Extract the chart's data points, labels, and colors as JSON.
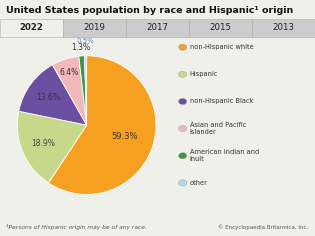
{
  "title": "United States population by race and Hispanic¹ origin",
  "footnote": "¹Persons of Hispanic origin may be of any race.",
  "copyright": "© Encyclopaedia Britannica, Inc.",
  "years": [
    "2022",
    "2019",
    "2017",
    "2015",
    "2013"
  ],
  "slices": [
    {
      "label": "non-Hispanic white",
      "value": 59.3,
      "color": "#f5a020"
    },
    {
      "label": "Hispanic",
      "value": 18.9,
      "color": "#c8d88a"
    },
    {
      "label": "non-Hispanic Black",
      "value": 13.6,
      "color": "#6b4fa0"
    },
    {
      "label": "Asian and Pacific\nIslander",
      "value": 6.4,
      "color": "#f0b8b8"
    },
    {
      "label": "American Indian and\nInuit",
      "value": 1.3,
      "color": "#3a9a44"
    },
    {
      "label": "other",
      "value": 0.5,
      "color": "#b0d8f0"
    }
  ],
  "bg_color": "#f0f0eb",
  "header_bg": "#cccccc",
  "header_selected_bg": "#f0f0eb",
  "pct_labels": [
    "59.3%",
    "18.9%",
    "13.6%",
    "6.4%",
    "1.3%",
    "0.5%"
  ],
  "pct_radii": [
    0.58,
    0.68,
    0.68,
    0.8,
    1.12,
    1.22
  ],
  "pct_colors": [
    "#333333",
    "#444444",
    "#333333",
    "#333333",
    "#333333",
    "#6688bb"
  ],
  "pct_fontsizes": [
    6.0,
    5.5,
    5.5,
    5.5,
    5.5,
    5.0
  ]
}
